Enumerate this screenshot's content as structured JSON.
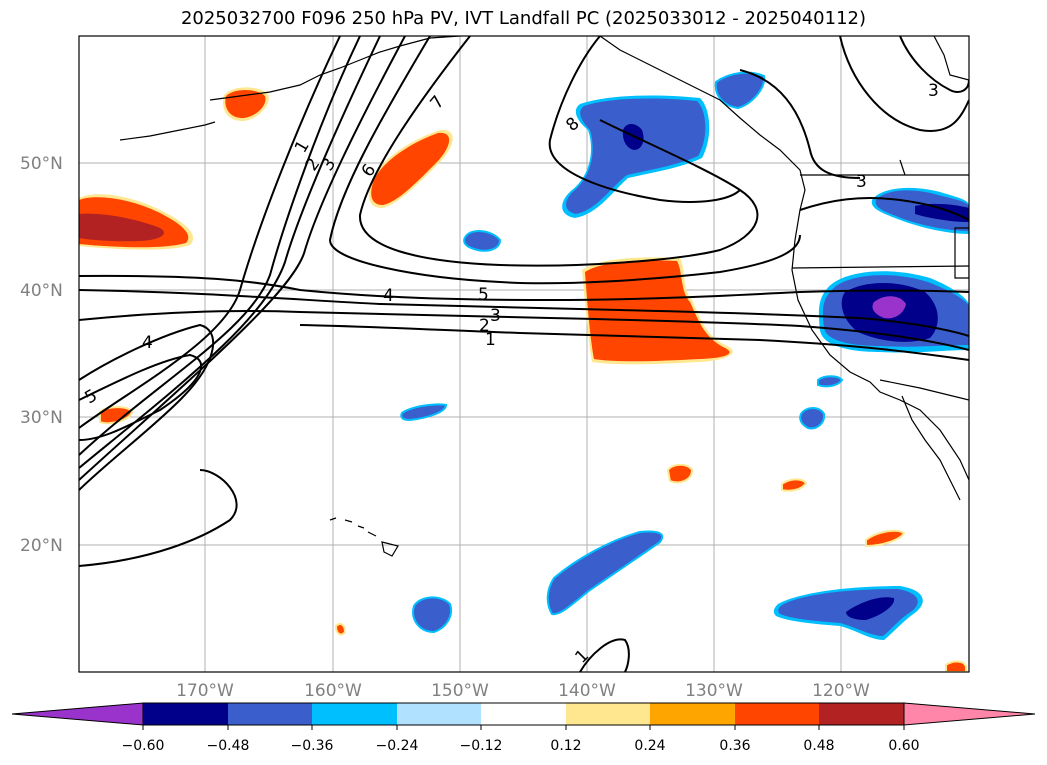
{
  "title": "2025032700 F096 250 hPa PV, IVT Landfall PC (2025033012 - 2025040112)",
  "lat_ticks": [
    "50°N",
    "40°N",
    "30°N",
    "20°N"
  ],
  "lon_ticks": [
    "170°W",
    "160°W",
    "150°W",
    "140°W",
    "130°W",
    "120°W"
  ],
  "colorbar": {
    "ticks": [
      "−0.60",
      "−0.48",
      "−0.36",
      "−0.24",
      "−0.12",
      "0.12",
      "0.24",
      "0.36",
      "0.48",
      "0.60"
    ],
    "colors": [
      "#9933cc",
      "#00008b",
      "#3a5fcd",
      "#00bfff",
      "#b0e2ff",
      "#ffffff",
      "#ffe78f",
      "#ffa500",
      "#ff4500",
      "#b22222",
      "#ff86a8"
    ]
  },
  "contour_labels": [
    {
      "text": "1"
    },
    {
      "text": "2"
    },
    {
      "text": "3"
    },
    {
      "text": "6"
    },
    {
      "text": "7"
    },
    {
      "text": "8"
    },
    {
      "text": "4"
    },
    {
      "text": "5"
    },
    {
      "text": "3"
    },
    {
      "text": "2"
    },
    {
      "text": "1"
    },
    {
      "text": "4"
    },
    {
      "text": "5"
    },
    {
      "text": "3"
    },
    {
      "text": "3"
    },
    {
      "text": "1"
    }
  ]
}
